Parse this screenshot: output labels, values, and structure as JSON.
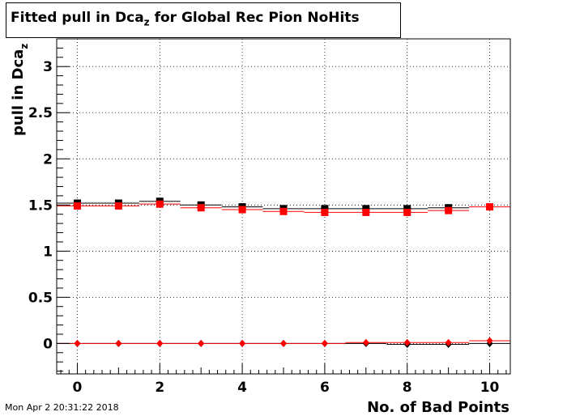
{
  "header": {
    "title_main": "Fitted pull in Dca",
    "title_sub": "z",
    "title_rest": " for Global Rec Pion NoHits"
  },
  "footer": {
    "timestamp": "Mon Apr  2 20:31:22 2018"
  },
  "chart_data": {
    "type": "scatter",
    "title": "Fitted pull in Dca_z for Global Rec Pion NoHits",
    "xlabel": "No. of Bad Points",
    "ylabel_main": "pull in Dca",
    "ylabel_sub": "z",
    "xlim": [
      -0.5,
      10.5
    ],
    "ylim": [
      -0.33,
      3.3
    ],
    "x_ticks": [
      0,
      2,
      4,
      6,
      8,
      10
    ],
    "x_tick_labels": [
      "0",
      "2",
      "4",
      "6",
      "8",
      "10"
    ],
    "y_ticks": [
      0,
      0.5,
      1,
      1.5,
      2,
      2.5,
      3
    ],
    "y_tick_labels": [
      "0",
      "0.5",
      "1",
      "1.5",
      "2",
      "2.5",
      "3"
    ],
    "grid": true,
    "series": [
      {
        "marker": "square",
        "color": "#000000",
        "x": [
          0,
          1,
          2,
          3,
          4,
          5,
          6,
          7,
          8,
          9
        ],
        "y": [
          1.52,
          1.52,
          1.54,
          1.5,
          1.48,
          1.46,
          1.46,
          1.46,
          1.46,
          1.47
        ]
      },
      {
        "marker": "square",
        "color": "#ff0000",
        "x": [
          0,
          1,
          2,
          3,
          4,
          5,
          6,
          7,
          8,
          9,
          10
        ],
        "y": [
          1.49,
          1.49,
          1.51,
          1.47,
          1.45,
          1.43,
          1.42,
          1.42,
          1.42,
          1.44,
          1.48
        ]
      },
      {
        "marker": "diamond",
        "color": "#000000",
        "x": [
          0,
          1,
          2,
          3,
          4,
          5,
          6,
          7,
          8,
          9,
          10
        ],
        "y": [
          0.0,
          0.0,
          0.0,
          0.0,
          0.0,
          0.0,
          0.0,
          0.0,
          -0.01,
          -0.01,
          0.0
        ]
      },
      {
        "marker": "diamond",
        "color": "#ff0000",
        "x": [
          0,
          1,
          2,
          3,
          4,
          5,
          6,
          7,
          8,
          9,
          10
        ],
        "y": [
          0.0,
          0.0,
          0.0,
          0.0,
          0.0,
          0.0,
          0.0,
          0.01,
          0.01,
          0.01,
          0.03
        ]
      }
    ]
  }
}
